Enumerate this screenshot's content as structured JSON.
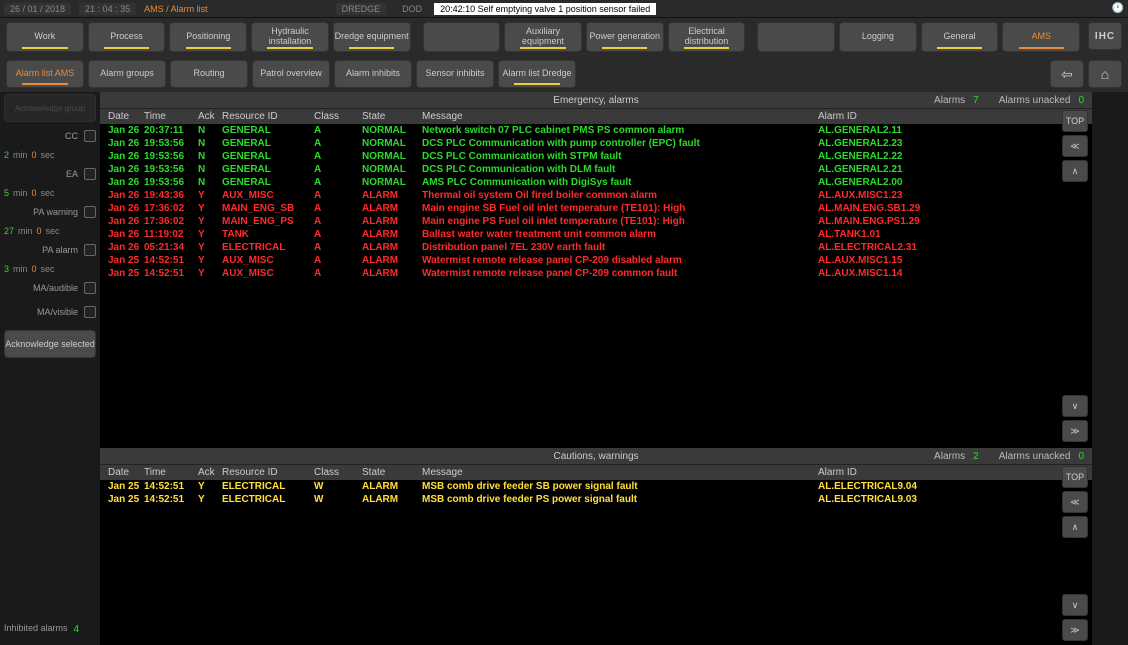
{
  "topbar": {
    "date": "26 / 01 / 2018",
    "time": "21 : 04 : 35",
    "path": "AMS / Alarm list",
    "dredge": "DREDGE",
    "dod": "DOD",
    "message": "20:42:10 Self emptying valve 1 position sensor failed",
    "clock_icon": "🕐"
  },
  "nav1": [
    {
      "label": "Work",
      "bar": "#e8d03a"
    },
    {
      "label": "Process",
      "bar": "#e8d03a"
    },
    {
      "label": "Positioning",
      "bar": "#e8d03a"
    },
    {
      "label": "Hydraulic installation",
      "bar": "#e8d03a"
    },
    {
      "label": "Dredge equipment",
      "bar": "#e8d03a"
    },
    {
      "label": "",
      "bar": null
    },
    {
      "label": "Auxiliary equipment",
      "bar": "#e8d03a"
    },
    {
      "label": "Power generation",
      "bar": "#e8d03a"
    },
    {
      "label": "Electrical distribution",
      "bar": "#e8d03a"
    },
    {
      "label": "",
      "bar": null
    },
    {
      "label": "Logging",
      "bar": null
    },
    {
      "label": "General",
      "bar": "#e8d03a"
    },
    {
      "label": "AMS",
      "bar": "#e88c3a",
      "active": true
    }
  ],
  "nav1_icons": [
    "IHC"
  ],
  "nav2": [
    {
      "label": "Alarm list AMS",
      "bar": "#e88c3a",
      "active": true
    },
    {
      "label": "Alarm groups"
    },
    {
      "label": "Routing"
    },
    {
      "label": "Patrol overview"
    },
    {
      "label": "Alarm inhibits"
    },
    {
      "label": "Sensor inhibits"
    },
    {
      "label": "Alarm list Dredge",
      "bar": "#e8d03a"
    }
  ],
  "nav2_icons": [
    "⇦",
    "⌂"
  ],
  "sidebar": {
    "btn1": "Acknowledge group",
    "rows": [
      {
        "label": "CC",
        "chk": true
      },
      {
        "t1": "2",
        "u1": "min",
        "t2": "0",
        "u2": "sec"
      },
      {
        "label": "EA",
        "chk": true
      },
      {
        "t1": "5",
        "u1": "min",
        "t2": "0",
        "u2": "sec"
      },
      {
        "label": "PA warning",
        "chk": true
      },
      {
        "t1": "27",
        "u1": "min",
        "t2": "0",
        "u2": "sec"
      },
      {
        "label": "PA alarm",
        "chk": true
      },
      {
        "t1": "3",
        "u1": "min",
        "t2": "0",
        "u2": "sec"
      },
      {
        "label": "MA/audible",
        "chk": true
      },
      {
        "label": "MA/visible",
        "chk": true
      }
    ],
    "ack": "Acknowledge selected",
    "inhibited_label": "Inhibited alarms",
    "inhibited_count": "4"
  },
  "colors": {
    "green": "#2bdb2b",
    "red": "#ff2a2a",
    "yellow": "#ffe03a"
  },
  "emergency": {
    "title": "Emergency, alarms",
    "alarms_label": "Alarms",
    "alarms_count": "7",
    "unacked_label": "Alarms unacked",
    "unacked_count": "0",
    "columns": [
      "Date",
      "Time",
      "Ack",
      "Resource ID",
      "Class",
      "State",
      "Message",
      "Alarm ID"
    ],
    "top_label": "TOP",
    "rows": [
      {
        "c": "green",
        "date": "Jan 26",
        "time": "20:37:11",
        "ack": "N",
        "res": "GENERAL",
        "class": "A",
        "state": "NORMAL",
        "msg": "Network switch 07 PLC cabinet PMS PS common alarm",
        "id": "AL.GENERAL2.11"
      },
      {
        "c": "green",
        "date": "Jan 26",
        "time": "19:53:56",
        "ack": "N",
        "res": "GENERAL",
        "class": "A",
        "state": "NORMAL",
        "msg": "DCS PLC Communication with pump controller (EPC) fault",
        "id": "AL.GENERAL2.23"
      },
      {
        "c": "green",
        "date": "Jan 26",
        "time": "19:53:56",
        "ack": "N",
        "res": "GENERAL",
        "class": "A",
        "state": "NORMAL",
        "msg": "DCS PLC Communication with STPM fault",
        "id": "AL.GENERAL2.22"
      },
      {
        "c": "green",
        "date": "Jan 26",
        "time": "19:53:56",
        "ack": "N",
        "res": "GENERAL",
        "class": "A",
        "state": "NORMAL",
        "msg": "DCS PLC Communication with DLM fault",
        "id": "AL.GENERAL2.21"
      },
      {
        "c": "green",
        "date": "Jan 26",
        "time": "19:53:56",
        "ack": "N",
        "res": "GENERAL",
        "class": "A",
        "state": "NORMAL",
        "msg": "AMS PLC Communication with DigiSys fault",
        "id": "AL.GENERAL2.00"
      },
      {
        "c": "red",
        "date": "Jan 26",
        "time": "19:43:36",
        "ack": "Y",
        "res": "AUX_MISC",
        "class": "A",
        "state": "ALARM",
        "msg": "Thermal oil system Oil fired boiler common alarm",
        "id": "AL.AUX.MISC1.23"
      },
      {
        "c": "red",
        "date": "Jan 26",
        "time": "17:36:02",
        "ack": "Y",
        "res": "MAIN_ENG_SB",
        "class": "A",
        "state": "ALARM",
        "msg": "Main engine SB Fuel oil inlet temperature (TE101): High",
        "id": "AL.MAIN.ENG.SB1.29"
      },
      {
        "c": "red",
        "date": "Jan 26",
        "time": "17:36:02",
        "ack": "Y",
        "res": "MAIN_ENG_PS",
        "class": "A",
        "state": "ALARM",
        "msg": "Main engine PS Fuel oil inlet temperature (TE101): High",
        "id": "AL.MAIN.ENG.PS1.29"
      },
      {
        "c": "red",
        "date": "Jan 26",
        "time": "11:19:02",
        "ack": "Y",
        "res": "TANK",
        "class": "A",
        "state": "ALARM",
        "msg": "Ballast water water treatment unit common alarm",
        "id": "AL.TANK1.01"
      },
      {
        "c": "red",
        "date": "Jan 26",
        "time": "05:21:34",
        "ack": "Y",
        "res": "ELECTRICAL",
        "class": "A",
        "state": "ALARM",
        "msg": "Distribution panel 7EL 230V earth fault",
        "id": "AL.ELECTRICAL2.31"
      },
      {
        "c": "red",
        "date": "Jan 25",
        "time": "14:52:51",
        "ack": "Y",
        "res": "AUX_MISC",
        "class": "A",
        "state": "ALARM",
        "msg": "Watermist remote release panel CP-209 disabled alarm",
        "id": "AL.AUX.MISC1.15"
      },
      {
        "c": "red",
        "date": "Jan 25",
        "time": "14:52:51",
        "ack": "Y",
        "res": "AUX_MISC",
        "class": "A",
        "state": "ALARM",
        "msg": "Watermist remote release panel CP-209 common fault",
        "id": "AL.AUX.MISC1.14"
      }
    ]
  },
  "cautions": {
    "title": "Cautions, warnings",
    "alarms_label": "Alarms",
    "alarms_count": "2",
    "unacked_label": "Alarms unacked",
    "unacked_count": "0",
    "top_label": "TOP",
    "rows": [
      {
        "c": "yellow",
        "date": "Jan 25",
        "time": "14:52:51",
        "ack": "Y",
        "res": "ELECTRICAL",
        "class": "W",
        "state": "ALARM",
        "msg": "MSB comb drive feeder SB power signal fault",
        "id": "AL.ELECTRICAL9.04"
      },
      {
        "c": "yellow",
        "date": "Jan 25",
        "time": "14:52:51",
        "ack": "Y",
        "res": "ELECTRICAL",
        "class": "W",
        "state": "ALARM",
        "msg": "MSB comb drive feeder PS power signal fault",
        "id": "AL.ELECTRICAL9.03"
      }
    ]
  }
}
